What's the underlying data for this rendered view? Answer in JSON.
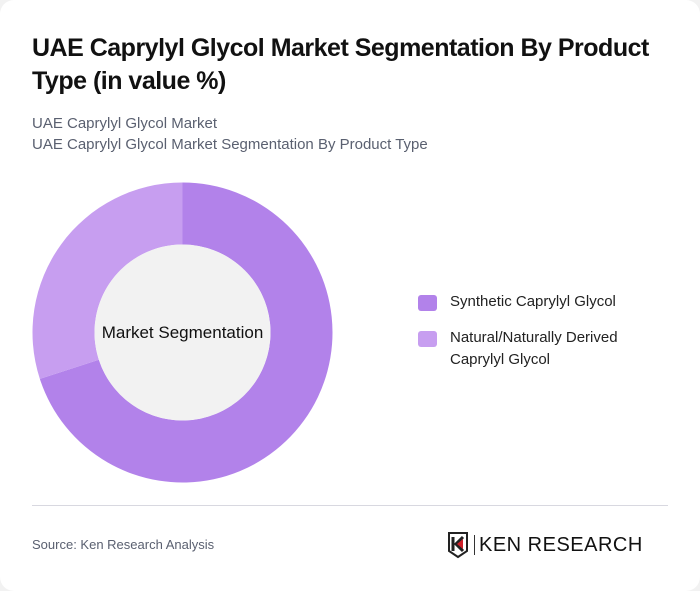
{
  "header": {
    "title": "UAE Caprylyl Glycol Market Segmentation By Product Type (in value %)",
    "subtitle_line1": "UAE Caprylyl Glycol Market",
    "subtitle_line2": "UAE Caprylyl Glycol Market Segmentation By Product Type"
  },
  "chart": {
    "center_label": "Market Segmentation"
  },
  "legend": {
    "items": [
      {
        "label": "Synthetic Caprylyl Glycol",
        "color": "#b282ea"
      },
      {
        "label": "Natural/Naturally Derived Caprylyl Glycol",
        "color": "#c79ef0"
      }
    ]
  },
  "footer": {
    "source": "Source: Ken Research Analysis",
    "logo_text": "KEN RESEARCH",
    "logo_icon": "ken-research-k-shield-icon"
  },
  "chart_data": {
    "type": "pie",
    "subtype": "donut",
    "title": "UAE Caprylyl Glycol Market Segmentation By Product Type (in value %)",
    "center_label": "Market Segmentation",
    "categories": [
      "Synthetic Caprylyl Glycol",
      "Natural/Naturally Derived Caprylyl Glycol"
    ],
    "values": [
      70,
      30
    ],
    "colors": [
      "#b282ea",
      "#c79ef0"
    ],
    "legend_position": "right",
    "data_labels": false
  }
}
